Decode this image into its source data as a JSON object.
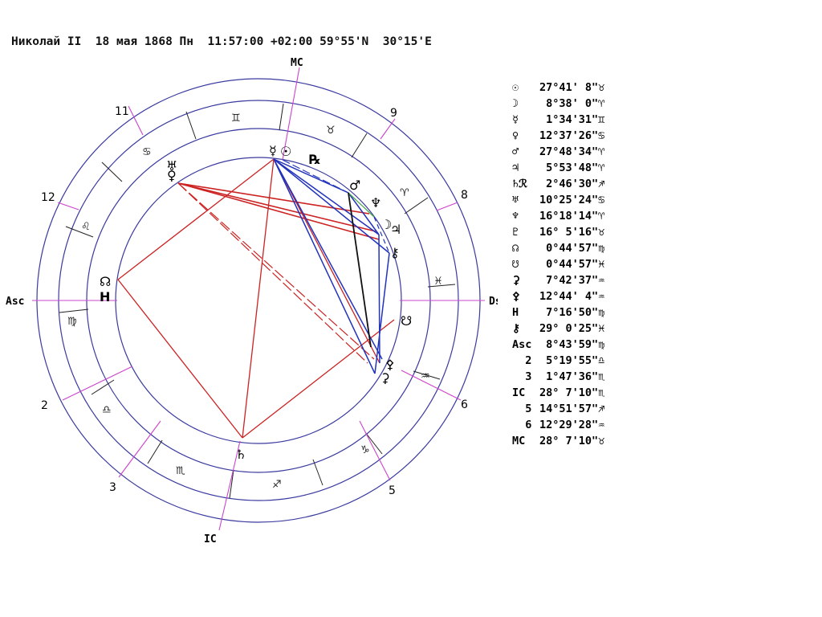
{
  "header": {
    "name": "Николай II",
    "date": "18 мая 1868 Пн",
    "time": "11:57:00 +02:00",
    "lat": "59°55'N",
    "lon": "30°15'E"
  },
  "axes": {
    "mc": "MC",
    "ic": "IC",
    "asc": "Asc",
    "dsc": "Dsc"
  },
  "houses": [
    "11",
    "9",
    "12",
    "8",
    "2",
    "6",
    "3",
    "5"
  ],
  "signs": [
    "♊",
    "♉",
    "♋",
    "♈",
    "♌",
    "♓",
    "♍",
    "♒",
    "♎",
    "♑",
    "♏",
    "♐"
  ],
  "planet_glyphs": {
    "mercury": "☿",
    "sun": "☉",
    "retro": "℞",
    "mars": "♂",
    "neptune": "♆",
    "moon": "☽",
    "jupiter": "♃",
    "chiron": "⚷",
    "uranus": "♅",
    "venus": "♀",
    "node": "☊",
    "south_node": "☋",
    "ceres": "⚳",
    "pallas": "⚴",
    "saturn": "♄",
    "h": "Н"
  },
  "positions": [
    {
      "g": "☉",
      "v": "27°41' 8\"♉"
    },
    {
      "g": "☽",
      "v": " 8°38' 0\"♈"
    },
    {
      "g": "☿",
      "v": " 1°34'31\"♊"
    },
    {
      "g": "♀",
      "v": "12°37'26\"♋"
    },
    {
      "g": "♂",
      "v": "27°48'34\"♈"
    },
    {
      "g": "♃",
      "v": " 5°53'48\"♈"
    },
    {
      "g": "♄ℛ",
      "v": " 2°46'30\"♐"
    },
    {
      "g": "♅",
      "v": "10°25'24\"♋"
    },
    {
      "g": "♆",
      "v": "16°18'14\"♈"
    },
    {
      "g": "♇",
      "v": "16° 5'16\"♉"
    },
    {
      "g": "☊",
      "v": " 0°44'57\"♍"
    },
    {
      "g": "☋",
      "v": " 0°44'57\"♓"
    },
    {
      "g": "⚳",
      "v": " 7°42'37\"♒"
    },
    {
      "g": "⚴",
      "v": "12°44' 4\"♒"
    },
    {
      "g": "Н",
      "v": " 7°16'50\"♍"
    },
    {
      "g": "⚷",
      "v": "29° 0'25\"♓"
    },
    {
      "g": "Asc",
      "v": " 8°43'59\"♍"
    },
    {
      "g": "  2",
      "v": " 5°19'55\"♎"
    },
    {
      "g": "  3",
      "v": " 1°47'36\"♏"
    },
    {
      "g": "IC",
      "v": "28° 7'10\"♏"
    },
    {
      "g": "  5",
      "v": "14°51'57\"♐"
    },
    {
      "g": "  6",
      "v": "12°29'28\"♒"
    },
    {
      "g": "MC",
      "v": "28° 7'10\"♉"
    }
  ]
}
